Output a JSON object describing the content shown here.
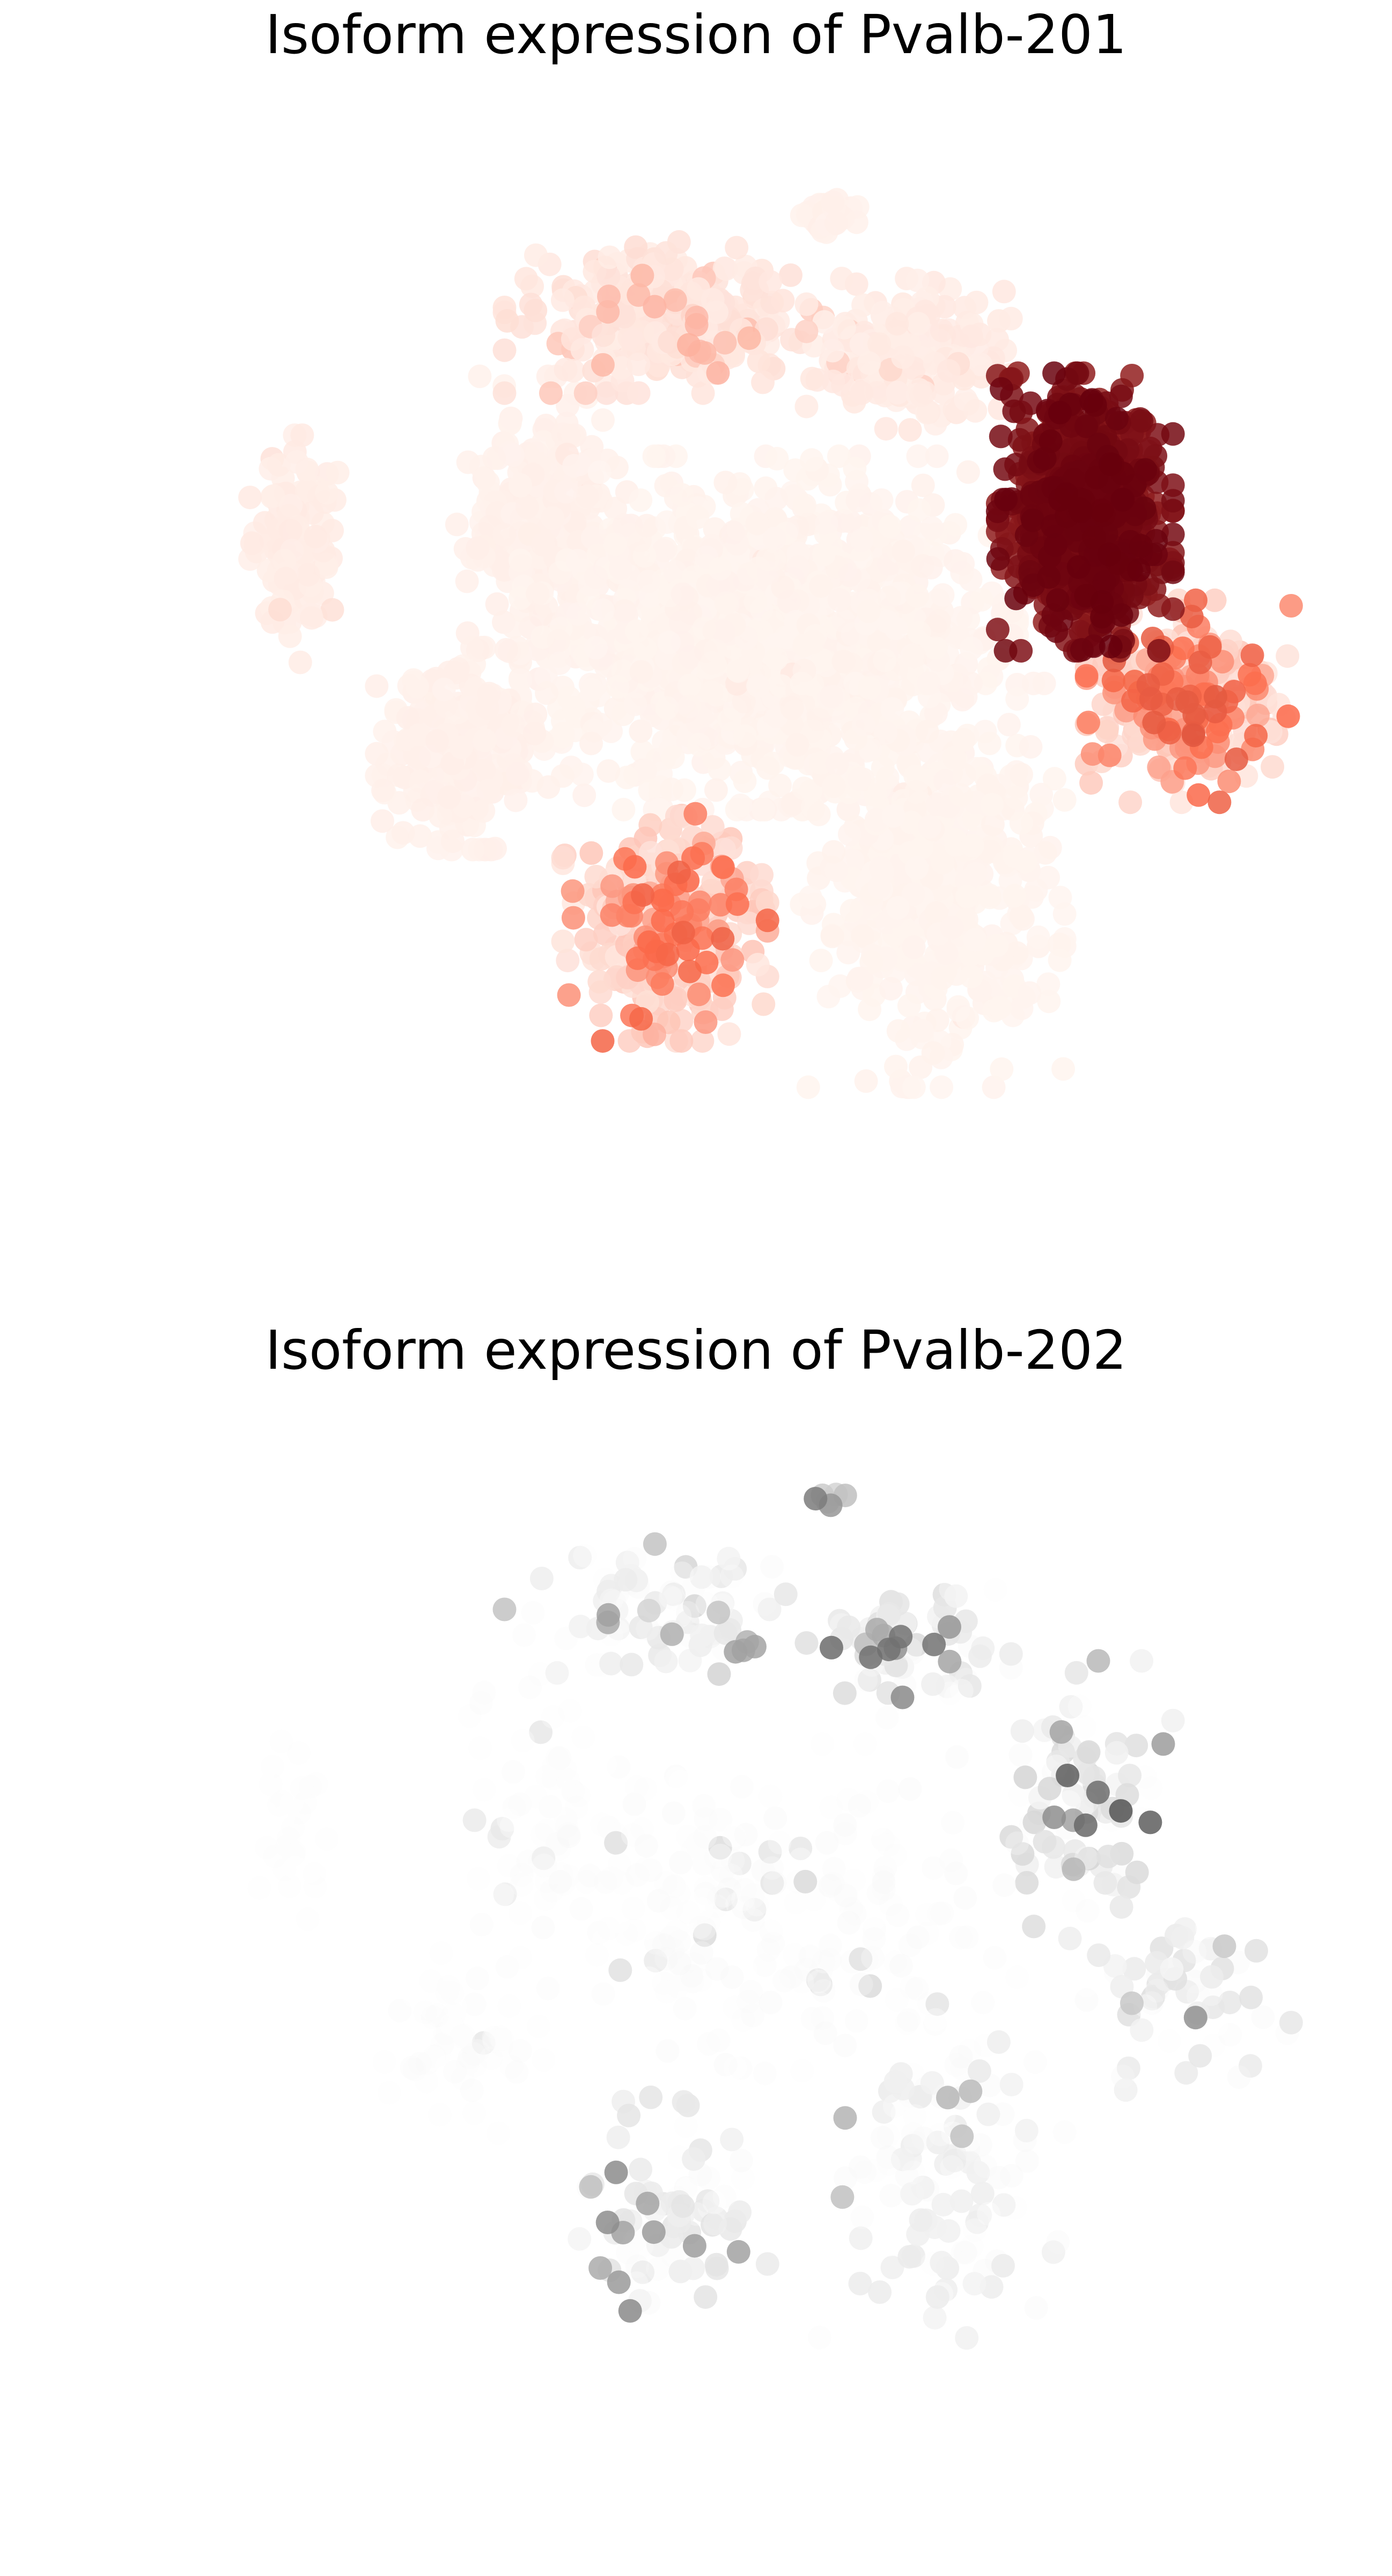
{
  "chart_data": [
    {
      "type": "scatter",
      "title": "Isoform expression of Pvalb-201",
      "xlabel": "",
      "ylabel": "",
      "grid": false,
      "axes_visible": false,
      "colormap": "Reds",
      "colors": {
        "low": "#fff5f0",
        "mid": "#fb6a4a",
        "high": "#67000d"
      },
      "clusters": [
        {
          "id": "c1",
          "cx": 0.14,
          "cy": 0.43,
          "sx": 0.015,
          "sy": 0.045,
          "n": 140,
          "expr": [
            0.02,
            0.1
          ],
          "hi_frac": 0.03
        },
        {
          "id": "c2",
          "cx": 0.345,
          "cy": 0.41,
          "sx": 0.03,
          "sy": 0.06,
          "n": 260,
          "expr": [
            0.01,
            0.06
          ],
          "hi_frac": 0.01
        },
        {
          "id": "c3",
          "cx": 0.445,
          "cy": 0.21,
          "sx": 0.055,
          "sy": 0.03,
          "n": 320,
          "expr": [
            0.03,
            0.25
          ],
          "hi_frac": 0.12
        },
        {
          "id": "c4",
          "cx": 0.58,
          "cy": 0.112,
          "sx": 0.012,
          "sy": 0.008,
          "n": 50,
          "expr": [
            0.01,
            0.05
          ],
          "hi_frac": 0.0
        },
        {
          "id": "c5",
          "cx": 0.645,
          "cy": 0.245,
          "sx": 0.035,
          "sy": 0.03,
          "n": 220,
          "expr": [
            0.02,
            0.15
          ],
          "hi_frac": 0.06
        },
        {
          "id": "c6",
          "cx": 0.79,
          "cy": 0.395,
          "sx": 0.03,
          "sy": 0.055,
          "n": 900,
          "expr": [
            0.75,
            1.0
          ],
          "hi_frac": 1.0
        },
        {
          "id": "c7",
          "cx": 0.875,
          "cy": 0.575,
          "sx": 0.035,
          "sy": 0.04,
          "n": 320,
          "expr": [
            0.05,
            0.6
          ],
          "hi_frac": 0.3
        },
        {
          "id": "c8",
          "cx": 0.53,
          "cy": 0.51,
          "sx": 0.085,
          "sy": 0.07,
          "n": 1300,
          "expr": [
            0.0,
            0.06
          ],
          "hi_frac": 0.01
        },
        {
          "id": "c9",
          "cx": 0.28,
          "cy": 0.62,
          "sx": 0.03,
          "sy": 0.04,
          "n": 260,
          "expr": [
            0.01,
            0.06
          ],
          "hi_frac": 0.01
        },
        {
          "id": "c10",
          "cx": 0.445,
          "cy": 0.79,
          "sx": 0.035,
          "sy": 0.045,
          "n": 340,
          "expr": [
            0.05,
            0.55
          ],
          "hi_frac": 0.25
        },
        {
          "id": "c11",
          "cx": 0.665,
          "cy": 0.75,
          "sx": 0.045,
          "sy": 0.08,
          "n": 520,
          "expr": [
            0.0,
            0.05
          ],
          "hi_frac": 0.01
        }
      ]
    },
    {
      "type": "scatter",
      "title": "Isoform expression of Pvalb-202",
      "xlabel": "",
      "ylabel": "",
      "grid": false,
      "axes_visible": false,
      "colormap": "Greys",
      "colors": {
        "low": "#ffffff",
        "mid": "#969696",
        "high": "#000000"
      },
      "clusters": [
        {
          "id": "g1",
          "cx": 0.14,
          "cy": 0.43,
          "sx": 0.015,
          "sy": 0.045,
          "n": 40,
          "expr": [
            0.0,
            0.08
          ],
          "hi_frac": 0.02
        },
        {
          "id": "g2",
          "cx": 0.345,
          "cy": 0.41,
          "sx": 0.03,
          "sy": 0.06,
          "n": 80,
          "expr": [
            0.0,
            0.12
          ],
          "hi_frac": 0.05
        },
        {
          "id": "g3",
          "cx": 0.445,
          "cy": 0.21,
          "sx": 0.055,
          "sy": 0.03,
          "n": 90,
          "expr": [
            0.0,
            0.45
          ],
          "hi_frac": 0.15
        },
        {
          "id": "g4",
          "cx": 0.58,
          "cy": 0.112,
          "sx": 0.012,
          "sy": 0.008,
          "n": 6,
          "expr": [
            0.2,
            0.6
          ],
          "hi_frac": 0.5
        },
        {
          "id": "g5",
          "cx": 0.645,
          "cy": 0.245,
          "sx": 0.035,
          "sy": 0.03,
          "n": 70,
          "expr": [
            0.0,
            0.7
          ],
          "hi_frac": 0.12
        },
        {
          "id": "g6",
          "cx": 0.79,
          "cy": 0.395,
          "sx": 0.03,
          "sy": 0.055,
          "n": 90,
          "expr": [
            0.0,
            0.8
          ],
          "hi_frac": 0.2
        },
        {
          "id": "g7",
          "cx": 0.875,
          "cy": 0.575,
          "sx": 0.035,
          "sy": 0.04,
          "n": 60,
          "expr": [
            0.0,
            0.6
          ],
          "hi_frac": 0.1
        },
        {
          "id": "g8",
          "cx": 0.53,
          "cy": 0.51,
          "sx": 0.085,
          "sy": 0.07,
          "n": 260,
          "expr": [
            0.0,
            0.18
          ],
          "hi_frac": 0.05
        },
        {
          "id": "g9",
          "cx": 0.28,
          "cy": 0.62,
          "sx": 0.03,
          "sy": 0.04,
          "n": 70,
          "expr": [
            0.0,
            0.12
          ],
          "hi_frac": 0.05
        },
        {
          "id": "g10",
          "cx": 0.445,
          "cy": 0.79,
          "sx": 0.035,
          "sy": 0.045,
          "n": 80,
          "expr": [
            0.0,
            0.55
          ],
          "hi_frac": 0.12
        },
        {
          "id": "g11",
          "cx": 0.665,
          "cy": 0.75,
          "sx": 0.045,
          "sy": 0.08,
          "n": 120,
          "expr": [
            0.0,
            0.4
          ],
          "hi_frac": 0.06
        }
      ]
    }
  ]
}
